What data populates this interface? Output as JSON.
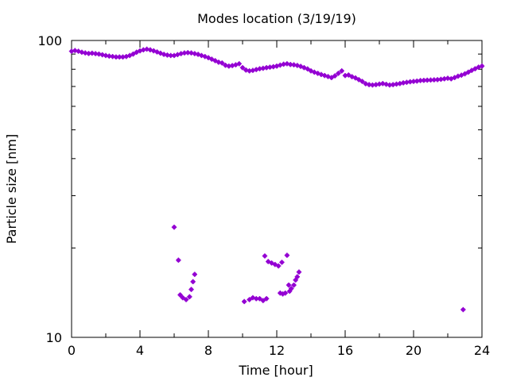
{
  "chart_data": {
    "type": "scatter",
    "title": "Modes location (3/19/19)",
    "xlabel": "Time [hour]",
    "ylabel": "Particle size [nm]",
    "xlim": [
      0,
      24
    ],
    "ylim": [
      10,
      100
    ],
    "yscale": "log",
    "x_ticks": [
      0,
      4,
      8,
      12,
      16,
      20,
      24
    ],
    "y_tick_labels": [
      "10",
      "100"
    ],
    "grid": false,
    "point_color": "#9400d3",
    "main_mode": {
      "x": [
        0.0,
        0.2,
        0.4,
        0.6,
        0.8,
        1.0,
        1.2,
        1.4,
        1.6,
        1.8,
        2.0,
        2.2,
        2.4,
        2.6,
        2.8,
        3.0,
        3.2,
        3.4,
        3.6,
        3.8,
        4.0,
        4.2,
        4.4,
        4.6,
        4.8,
        5.0,
        5.2,
        5.4,
        5.6,
        5.8,
        6.0,
        6.2,
        6.4,
        6.6,
        6.8,
        7.0,
        7.2,
        7.4,
        7.6,
        7.8,
        8.0,
        8.2,
        8.4,
        8.6,
        8.8,
        9.0,
        9.2,
        9.4,
        9.6,
        9.8,
        10.0,
        10.2,
        10.4,
        10.6,
        10.8,
        11.0,
        11.2,
        11.4,
        11.6,
        11.8,
        12.0,
        12.2,
        12.4,
        12.6,
        12.8,
        13.0,
        13.2,
        13.4,
        13.6,
        13.8,
        14.0,
        14.2,
        14.4,
        14.6,
        14.8,
        15.0,
        15.2,
        15.4,
        15.6,
        15.8,
        16.0,
        16.2,
        16.4,
        16.6,
        16.8,
        17.0,
        17.2,
        17.4,
        17.6,
        17.8,
        18.0,
        18.2,
        18.4,
        18.6,
        18.8,
        19.0,
        19.2,
        19.4,
        19.6,
        19.8,
        20.0,
        20.2,
        20.4,
        20.6,
        20.8,
        21.0,
        21.2,
        21.4,
        21.6,
        21.8,
        22.0,
        22.2,
        22.4,
        22.6,
        22.8,
        23.0,
        23.2,
        23.4,
        23.6,
        23.8,
        24.0
      ],
      "y": [
        92.0,
        92.5,
        92.0,
        91.3,
        90.8,
        90.4,
        90.6,
        90.3,
        90.0,
        89.5,
        89.0,
        88.6,
        88.3,
        88.0,
        88.0,
        88.0,
        88.3,
        89.0,
        90.0,
        91.3,
        92.3,
        93.0,
        93.5,
        93.0,
        92.3,
        91.5,
        90.6,
        89.8,
        89.3,
        89.0,
        89.0,
        89.6,
        90.3,
        90.8,
        91.0,
        90.8,
        90.3,
        89.8,
        89.0,
        88.3,
        87.5,
        86.5,
        85.5,
        84.5,
        84.0,
        82.5,
        82.0,
        82.3,
        82.8,
        83.5,
        81.0,
        79.5,
        79.0,
        79.3,
        79.8,
        80.3,
        80.6,
        81.0,
        81.3,
        81.6,
        82.0,
        82.6,
        83.2,
        83.5,
        83.0,
        82.8,
        82.4,
        81.8,
        81.0,
        80.2,
        79.0,
        78.2,
        77.5,
        76.8,
        76.2,
        75.6,
        75.0,
        76.0,
        77.5,
        79.0,
        76.2,
        76.5,
        75.5,
        74.8,
        73.8,
        72.8,
        71.5,
        71.0,
        70.8,
        71.0,
        71.3,
        71.6,
        71.2,
        70.8,
        71.0,
        71.3,
        71.6,
        72.0,
        72.3,
        72.6,
        72.8,
        73.0,
        73.3,
        73.4,
        73.5,
        73.6,
        73.7,
        73.8,
        74.0,
        74.3,
        74.6,
        74.3,
        75.0,
        75.8,
        76.4,
        77.2,
        78.2,
        79.3,
        80.3,
        81.3,
        82.0
      ]
    },
    "secondary_mode": {
      "x": [
        6.0,
        6.25,
        6.35,
        6.5,
        6.7,
        6.9,
        7.0,
        7.1,
        7.2,
        10.1,
        10.4,
        10.6,
        10.8,
        11.0,
        11.2,
        11.4,
        11.3,
        11.5,
        11.7,
        11.9,
        12.1,
        12.3,
        12.2,
        12.35,
        12.5,
        12.6,
        12.7,
        12.75,
        12.85,
        13.0,
        13.1,
        13.2,
        13.3,
        22.9
      ],
      "y": [
        23.5,
        18.2,
        13.9,
        13.6,
        13.4,
        13.7,
        14.5,
        15.4,
        16.3,
        13.2,
        13.4,
        13.6,
        13.5,
        13.5,
        13.3,
        13.5,
        18.8,
        18.0,
        17.8,
        17.6,
        17.4,
        17.9,
        14.1,
        14.0,
        14.1,
        18.9,
        15.0,
        14.3,
        14.6,
        15.0,
        15.6,
        16.0,
        16.6,
        12.4
      ]
    }
  }
}
